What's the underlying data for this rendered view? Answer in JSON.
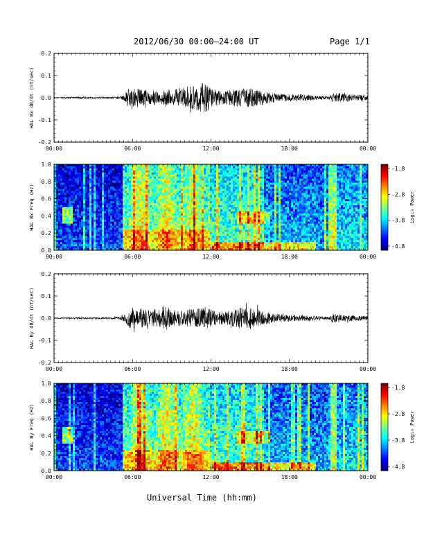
{
  "header": {
    "title": "2012/06/30  00:00–24:00 UT",
    "page": "Page 1/1"
  },
  "footer": {
    "xlabel": "Universal Time (hh:mm)"
  },
  "chart_data": [
    {
      "type": "line",
      "ylabel": "HAL Bx dB/dt (nT/sec)",
      "xlim": [
        0,
        24
      ],
      "ylim": [
        -0.2,
        0.2
      ],
      "xticks": [
        "00:00",
        "06:00",
        "12:00",
        "18:00",
        "00:00"
      ],
      "yticks": [
        "0.2",
        "0.1",
        "0.0",
        "-0.1",
        "-0.2"
      ],
      "envelope": {
        "x": [
          0,
          1,
          2,
          3,
          4,
          5,
          5.4,
          5.6,
          6,
          7,
          8,
          9,
          10,
          10.5,
          11,
          11.5,
          12,
          12.5,
          13,
          14,
          15,
          16,
          17,
          18,
          19,
          20,
          21,
          21.3,
          22,
          23,
          24
        ],
        "amp": [
          0.002,
          0.003,
          0.005,
          0.004,
          0.004,
          0.006,
          0.012,
          0.04,
          0.045,
          0.04,
          0.03,
          0.04,
          0.05,
          0.055,
          0.06,
          0.07,
          0.05,
          0.035,
          0.03,
          0.04,
          0.045,
          0.03,
          0.02,
          0.015,
          0.015,
          0.01,
          0.006,
          0.02,
          0.02,
          0.015,
          0.01
        ]
      }
    },
    {
      "type": "heatmap",
      "ylabel": "HAL Bx Freq (Hz)",
      "xlim": [
        0,
        24
      ],
      "ylim": [
        0,
        1.0
      ],
      "xticks": [
        "00:00",
        "06:00",
        "12:00",
        "18:00",
        "00:00"
      ],
      "yticks": [
        "1.0",
        "0.8",
        "0.6",
        "0.4",
        "0.2",
        "0.0"
      ],
      "colorbar": {
        "label": "Log₁₀ Power",
        "range": [
          -4.8,
          -1.8
        ],
        "ticks": [
          "-1.8",
          "-2.8",
          "-3.8",
          "-4.8"
        ]
      }
    },
    {
      "type": "line",
      "ylabel": "HAL By dB/dt (nT/sec)",
      "xlim": [
        0,
        24
      ],
      "ylim": [
        -0.2,
        0.2
      ],
      "xticks": [
        "00:00",
        "06:00",
        "12:00",
        "18:00",
        "00:00"
      ],
      "yticks": [
        "0.2",
        "0.1",
        "0.0",
        "-0.1",
        "-0.2"
      ],
      "envelope": {
        "x": [
          0,
          1,
          2,
          3,
          4,
          5,
          5.4,
          5.6,
          6,
          6.5,
          7,
          8,
          8.5,
          9,
          10,
          11,
          11.5,
          12,
          12.5,
          13,
          14,
          15,
          16,
          17,
          18,
          19,
          20,
          21,
          21.3,
          22,
          23,
          24
        ],
        "amp": [
          0.002,
          0.003,
          0.004,
          0.004,
          0.004,
          0.006,
          0.015,
          0.045,
          0.05,
          0.05,
          0.04,
          0.04,
          0.06,
          0.035,
          0.04,
          0.045,
          0.05,
          0.04,
          0.03,
          0.03,
          0.045,
          0.05,
          0.03,
          0.02,
          0.015,
          0.012,
          0.01,
          0.006,
          0.02,
          0.015,
          0.012,
          0.01
        ]
      }
    },
    {
      "type": "heatmap",
      "ylabel": "HAL By Freq (Hz)",
      "xlim": [
        0,
        24
      ],
      "ylim": [
        0,
        1.0
      ],
      "xticks": [
        "00:00",
        "06:00",
        "12:00",
        "18:00",
        "00:00"
      ],
      "yticks": [
        "1.0",
        "0.8",
        "0.6",
        "0.4",
        "0.2",
        "0.0"
      ],
      "colorbar": {
        "label": "Log₁₀ Power",
        "range": [
          -4.8,
          -1.8
        ],
        "ticks": [
          "-1.8",
          "-2.8",
          "-3.8",
          "-4.8"
        ]
      }
    }
  ]
}
